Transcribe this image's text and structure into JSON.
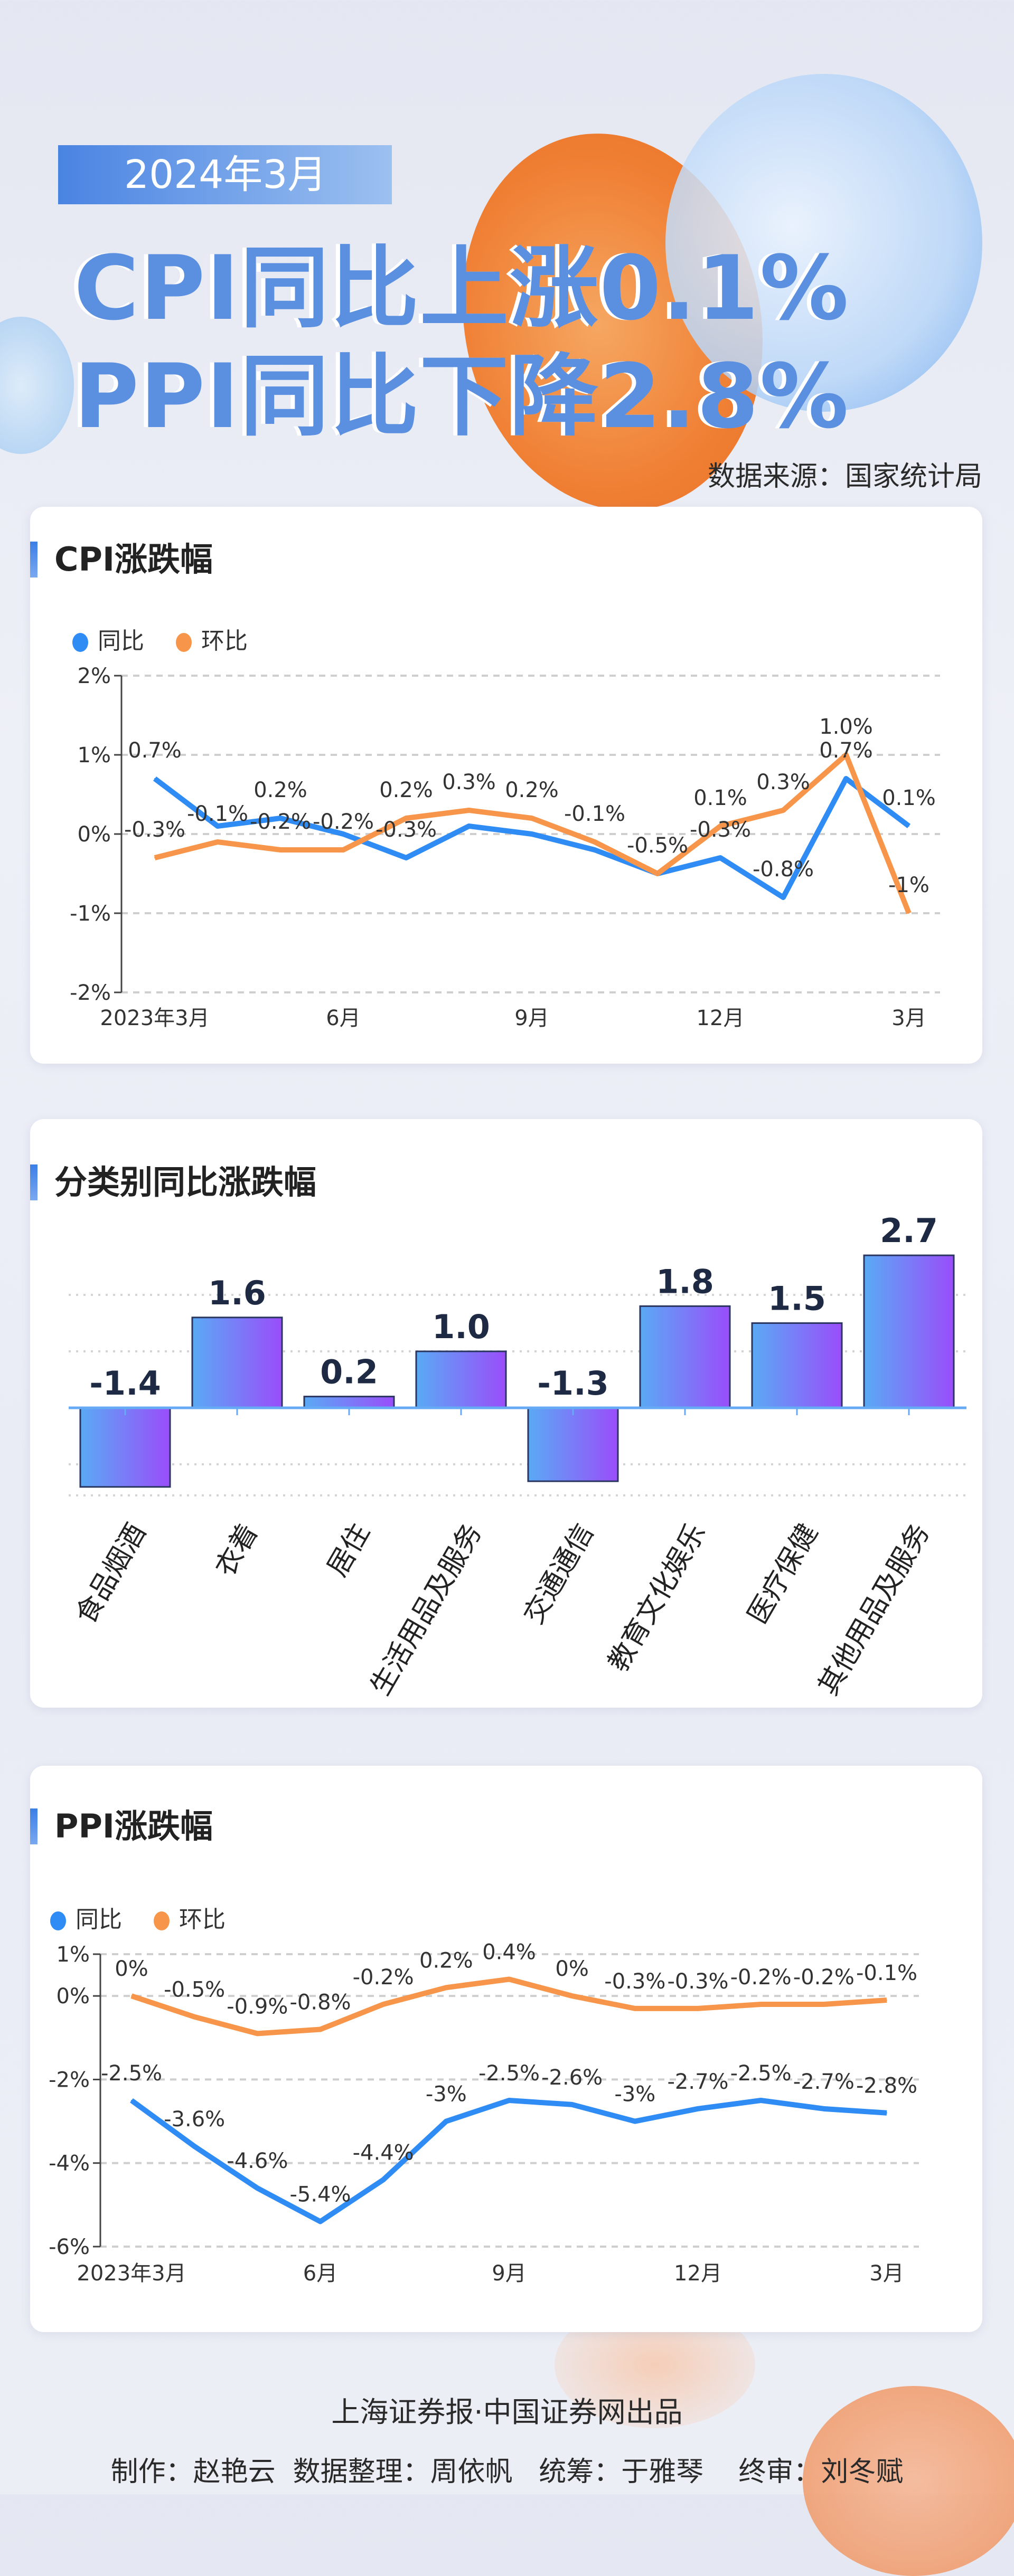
{
  "header": {
    "date_badge": "2024年3月",
    "headline_1": "CPI同比上涨0.1%",
    "headline_2": "PPI同比下降2.8%",
    "source": "数据来源：国家统计局"
  },
  "colors": {
    "yoy": "#2f8cf5",
    "mom": "#f7964a",
    "bar_start": "#5aaaf5",
    "bar_end": "#9a4dfa",
    "title_blue": "#5b8fe0"
  },
  "cpi": {
    "title": "CPI涨跌幅",
    "legend": [
      "同比",
      "环比"
    ],
    "chart_data": {
      "type": "line",
      "x": [
        "2023年3月",
        "4月",
        "5月",
        "6月",
        "7月",
        "8月",
        "9月",
        "10月",
        "11月",
        "12月",
        "1月",
        "2月",
        "3月"
      ],
      "xtick_labels": [
        "2023年3月",
        "",
        "",
        "6月",
        "",
        "",
        "9月",
        "",
        "",
        "12月",
        "",
        "",
        "3月"
      ],
      "ylim": [
        -2,
        2
      ],
      "yticks": [
        "-2%",
        "-1%",
        "0%",
        "1%",
        "2%"
      ],
      "ytick_values": [
        -2,
        -1,
        0,
        1,
        2
      ],
      "grid": true,
      "legend_position": "top-left",
      "series": [
        {
          "name": "同比",
          "values": [
            0.7,
            0.1,
            0.2,
            0,
            -0.3,
            0.1,
            0,
            -0.2,
            -0.5,
            -0.3,
            -0.8,
            0.7,
            0.1
          ],
          "labels": [
            "0.7%",
            null,
            "0.2%",
            null,
            "-0.3%",
            null,
            null,
            null,
            "-0.5%",
            "-0.3%",
            "-0.8%",
            "0.7%",
            "0.1%"
          ]
        },
        {
          "name": "环比",
          "values": [
            -0.3,
            -0.1,
            -0.2,
            -0.2,
            0.2,
            0.3,
            0.2,
            -0.1,
            -0.5,
            0.1,
            0.3,
            1.0,
            -1.0
          ],
          "labels": [
            "-0.3%",
            "-0.1%",
            "-0.2%",
            "-0.2%",
            "0.2%",
            "0.3%",
            "0.2%",
            "-0.1%",
            null,
            "0.1%",
            "0.3%",
            "1.0%",
            "-1%"
          ]
        }
      ]
    }
  },
  "category": {
    "title": "分类别同比涨跌幅",
    "chart_data": {
      "type": "bar",
      "categories": [
        "食品烟酒",
        "衣着",
        "居住",
        "生活用品及服务",
        "交通通信",
        "教育文化娱乐",
        "医疗保健",
        "其他用品及服务"
      ],
      "values": [
        -1.4,
        1.6,
        0.2,
        1.0,
        -1.3,
        1.8,
        1.5,
        2.7
      ],
      "value_labels": [
        "-1.4",
        "1.6",
        "0.2",
        "1.0",
        "-1.3",
        "1.8",
        "1.5",
        "2.7"
      ],
      "ylim": [
        -1.55,
        2.7
      ],
      "grid": true
    }
  },
  "ppi": {
    "title": "PPI涨跌幅",
    "legend": [
      "同比",
      "环比"
    ],
    "chart_data": {
      "type": "line",
      "x": [
        "2023年3月",
        "4月",
        "5月",
        "6月",
        "7月",
        "8月",
        "9月",
        "10月",
        "11月",
        "12月",
        "1月",
        "2月",
        "3月"
      ],
      "xtick_labels": [
        "2023年3月",
        "",
        "",
        "6月",
        "",
        "",
        "9月",
        "",
        "",
        "12月",
        "",
        "",
        "3月"
      ],
      "ylim": [
        -6,
        1
      ],
      "yticks": [
        "-6%",
        "-4%",
        "-2%",
        "0%",
        "1%"
      ],
      "ytick_values": [
        -6,
        -4,
        -2,
        0,
        1
      ],
      "grid": true,
      "legend_position": "top-left",
      "series": [
        {
          "name": "同比",
          "values": [
            -2.5,
            -3.6,
            -4.6,
            -5.4,
            -4.4,
            -3,
            -2.5,
            -2.6,
            -3,
            -2.7,
            -2.5,
            -2.7,
            -2.8
          ],
          "labels": [
            "-2.5%",
            "-3.6%",
            "-4.6%",
            "-5.4%",
            "-4.4%",
            "-3%",
            "-2.5%",
            "-2.6%",
            "-3%",
            "-2.7%",
            "-2.5%",
            "-2.7%",
            "-2.8%"
          ]
        },
        {
          "name": "环比",
          "values": [
            0,
            -0.5,
            -0.9,
            -0.8,
            -0.2,
            0.2,
            0.4,
            0,
            -0.3,
            -0.3,
            -0.2,
            -0.2,
            -0.1
          ],
          "labels": [
            "0%",
            "-0.5%",
            "-0.9%",
            "-0.8%",
            "-0.2%",
            "0.2%",
            "0.4%",
            "0%",
            "-0.3%",
            "-0.3%",
            "-0.2%",
            "-0.2%",
            "-0.1%"
          ]
        }
      ]
    }
  },
  "footer": {
    "publisher": "上海证券报·中国证券网出品",
    "credits": "制作：赵艳云  数据整理：周依帆   统筹：于雅琴    终审：刘冬赋"
  }
}
